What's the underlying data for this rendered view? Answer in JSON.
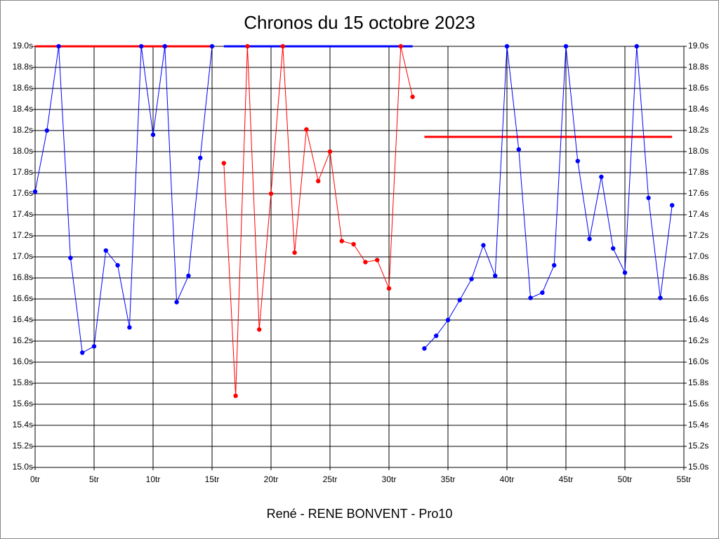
{
  "chart_data": {
    "type": "line",
    "title": "Chronos du 15 octobre 2023",
    "xlabel": "René - RENE BONVENT - Pro10",
    "xlim": [
      0,
      55
    ],
    "ylim": [
      15.0,
      19.0
    ],
    "grid": true,
    "right_axis": true,
    "xticks": [
      {
        "value": 0,
        "label": "0tr"
      },
      {
        "value": 5,
        "label": "5tr"
      },
      {
        "value": 10,
        "label": "10tr"
      },
      {
        "value": 15,
        "label": "15tr"
      },
      {
        "value": 20,
        "label": "20tr"
      },
      {
        "value": 25,
        "label": "25tr"
      },
      {
        "value": 30,
        "label": "30tr"
      },
      {
        "value": 35,
        "label": "35tr"
      },
      {
        "value": 40,
        "label": "40tr"
      },
      {
        "value": 45,
        "label": "45tr"
      },
      {
        "value": 50,
        "label": "50tr"
      },
      {
        "value": 55,
        "label": "55tr"
      }
    ],
    "yticks": [
      {
        "value": 15.0,
        "label": "15.0s"
      },
      {
        "value": 15.2,
        "label": "15.2s"
      },
      {
        "value": 15.4,
        "label": "15.4s"
      },
      {
        "value": 15.6,
        "label": "15.6s"
      },
      {
        "value": 15.8,
        "label": "15.8s"
      },
      {
        "value": 16.0,
        "label": "16.0s"
      },
      {
        "value": 16.2,
        "label": "16.2s"
      },
      {
        "value": 16.4,
        "label": "16.4s"
      },
      {
        "value": 16.6,
        "label": "16.6s"
      },
      {
        "value": 16.8,
        "label": "16.8s"
      },
      {
        "value": 17.0,
        "label": "17.0s"
      },
      {
        "value": 17.2,
        "label": "17.2s"
      },
      {
        "value": 17.4,
        "label": "17.4s"
      },
      {
        "value": 17.6,
        "label": "17.6s"
      },
      {
        "value": 17.8,
        "label": "17.8s"
      },
      {
        "value": 18.0,
        "label": "18.0s"
      },
      {
        "value": 18.2,
        "label": "18.2s"
      },
      {
        "value": 18.4,
        "label": "18.4s"
      },
      {
        "value": 18.6,
        "label": "18.6s"
      },
      {
        "value": 18.8,
        "label": "18.8s"
      },
      {
        "value": 19.0,
        "label": "19.0s"
      }
    ],
    "series": [
      {
        "color": "#0000ff",
        "x": [
          0,
          1,
          2,
          3,
          4,
          5,
          6,
          7,
          8,
          9,
          10,
          11,
          12,
          13,
          14,
          15
        ],
        "values": [
          17.62,
          18.2,
          19.0,
          16.99,
          16.09,
          16.15,
          17.06,
          16.92,
          16.33,
          19.0,
          18.16,
          19.0,
          16.57,
          16.82,
          17.94,
          19.0
        ]
      },
      {
        "color": "#ff0000",
        "x": [
          16,
          17,
          18,
          19,
          20,
          21,
          22,
          23,
          24,
          25,
          26,
          27,
          28,
          29,
          30,
          31,
          32
        ],
        "values": [
          17.89,
          15.68,
          19.0,
          16.31,
          17.6,
          19.0,
          17.04,
          18.21,
          17.72,
          18.0,
          17.15,
          17.12,
          16.95,
          16.97,
          16.7,
          19.0,
          18.52
        ]
      },
      {
        "color": "#0000ff",
        "x": [
          33,
          34,
          35,
          36,
          37,
          38,
          39,
          40,
          41,
          42,
          43,
          44,
          45,
          46,
          47,
          48,
          49,
          50,
          51,
          52,
          53,
          54
        ],
        "values": [
          16.13,
          16.25,
          16.4,
          16.59,
          16.79,
          17.11,
          16.82,
          19.0,
          18.02,
          16.61,
          16.66,
          16.92,
          19.0,
          17.91,
          17.17,
          17.76,
          17.08,
          16.85,
          19.0,
          17.56,
          16.61,
          17.49
        ]
      }
    ],
    "hlines": [
      {
        "color": "#ff0000",
        "y": 19.0,
        "x": [
          0,
          15
        ]
      },
      {
        "color": "#0000ff",
        "y": 19.0,
        "x": [
          16,
          32
        ]
      },
      {
        "color": "#ff0000",
        "y": 18.14,
        "x": [
          33,
          54
        ]
      }
    ]
  }
}
